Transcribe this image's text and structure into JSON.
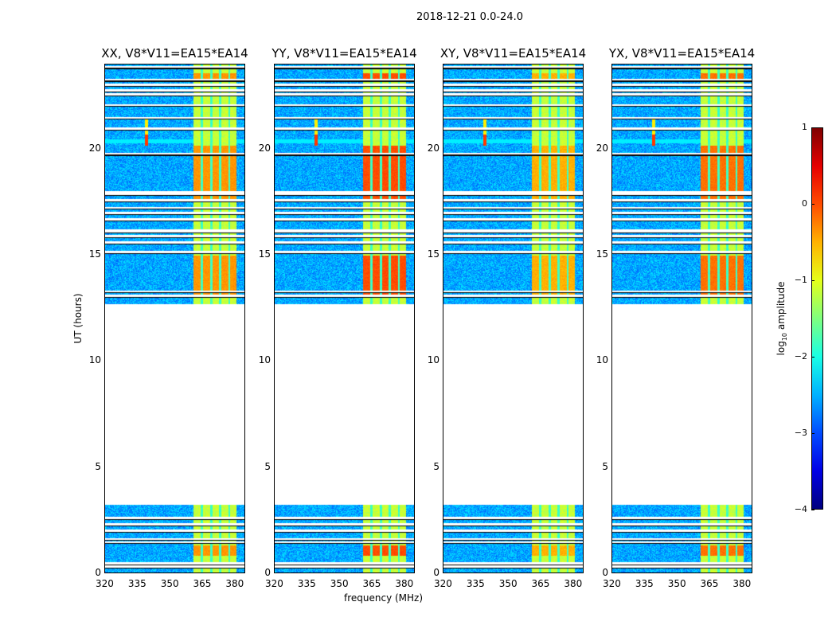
{
  "chart_data": {
    "type": "heatmap",
    "suptitle": "2018-12-21 0.0-24.0",
    "panels": [
      {
        "title": "XX, V8*V11=EA15*EA14",
        "strong_factor": 0.6
      },
      {
        "title": "YY, V8*V11=EA15*EA14",
        "strong_factor": 1.0
      },
      {
        "title": "XY, V8*V11=EA15*EA14",
        "strong_factor": 0.45
      },
      {
        "title": "YX, V8*V11=EA15*EA14",
        "strong_factor": 0.8
      }
    ],
    "xlabel": "frequency (MHz)",
    "ylabel": "UT (hours)",
    "xlim": [
      320,
      385
    ],
    "ylim": [
      0,
      24
    ],
    "xticks": [
      "320",
      "335",
      "350",
      "365",
      "380"
    ],
    "xtick_values": [
      320,
      335,
      350,
      365,
      380
    ],
    "yticks": [
      "0",
      "5",
      "10",
      "15",
      "20"
    ],
    "ytick_values": [
      0,
      5,
      10,
      15,
      20
    ],
    "data_hour_ranges": [
      [
        0,
        3.2
      ],
      [
        12.7,
        24
      ]
    ],
    "rfi_band_mhz": [
      361,
      381
    ],
    "rfi_subbands_mhz": [
      [
        361,
        364.5
      ],
      [
        365.5,
        369
      ],
      [
        370,
        373
      ],
      [
        374,
        377.5
      ],
      [
        378,
        381
      ]
    ],
    "strong_hour_ranges": [
      [
        17.5,
        20.2
      ],
      [
        13.0,
        15.0
      ],
      [
        0.8,
        1.3
      ],
      [
        23.3,
        23.6
      ]
    ],
    "narrowband_source": {
      "freq_mhz": 339,
      "hours": [
        20.2,
        21.5
      ]
    },
    "flagged_hours": [
      0.3,
      0.45,
      1.45,
      1.6,
      2.0,
      2.3,
      2.6,
      13.1,
      13.3,
      15.15,
      15.6,
      15.9,
      16.15,
      16.2,
      16.7,
      17.0,
      17.25,
      17.6,
      17.9,
      18.0,
      19.8,
      21.0,
      21.5,
      22.1,
      22.6,
      22.8,
      23.05,
      23.3,
      23.9
    ],
    "colorbar": {
      "label_prefix": "log",
      "label_sub": "10",
      "label_suffix": " amplitude",
      "colormap": "jet",
      "range": [
        -4,
        1
      ],
      "ticks": [
        "−4",
        "−3",
        "−2",
        "−1",
        "0",
        "1"
      ],
      "tick_values": [
        -4,
        -3,
        -2,
        -1,
        0,
        1
      ]
    }
  }
}
